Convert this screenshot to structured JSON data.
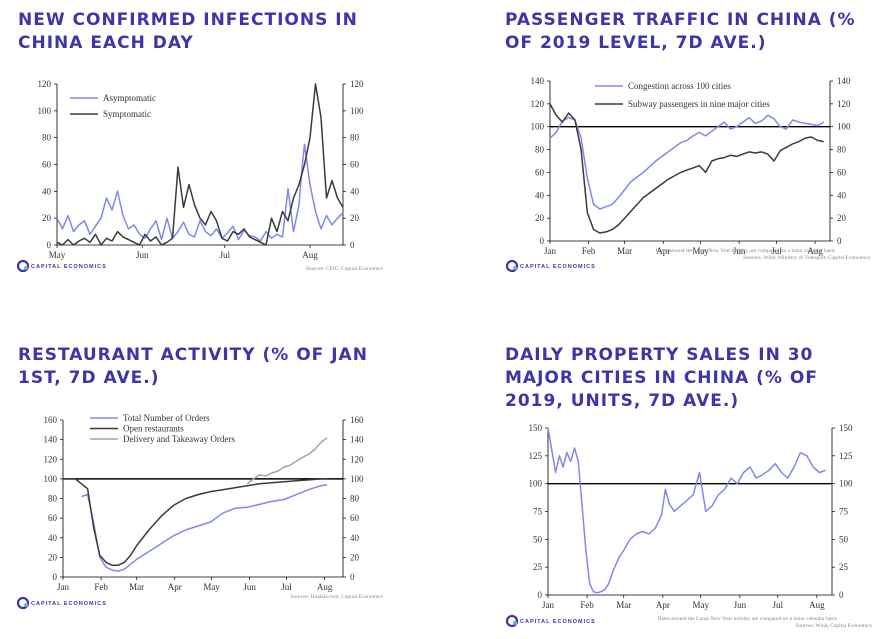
{
  "colors": {
    "title": "#3f34a8",
    "blue": "#8088ee",
    "dark": "#3a3a3a",
    "grey": "#a3a3a3",
    "axis": "#000000"
  },
  "logo": {
    "text": "CAPITAL ECONOMICS"
  },
  "chart_data": [
    {
      "id": "infections",
      "type": "line",
      "title": "NEW CONFIRMED INFECTIONS IN CHINA EACH DAY",
      "x_labels": [
        "May",
        "Jun",
        "Jul",
        "Aug"
      ],
      "x_label_pos": [
        0,
        31,
        61,
        92
      ],
      "xlim": [
        0,
        104
      ],
      "ylim": [
        0,
        120
      ],
      "yticks": [
        0,
        20,
        40,
        60,
        80,
        100,
        120
      ],
      "right_axis": true,
      "source": "Sources: CEIC, Capital Economics",
      "series": [
        {
          "name": "Asymptomatic",
          "color": "blue",
          "x": [
            0,
            2,
            4,
            6,
            8,
            10,
            12,
            14,
            16,
            18,
            20,
            22,
            24,
            26,
            28,
            30,
            32,
            34,
            36,
            38,
            40,
            42,
            44,
            46,
            48,
            50,
            52,
            54,
            56,
            58,
            60,
            62,
            64,
            66,
            68,
            70,
            72,
            74,
            76,
            78,
            80,
            82,
            84,
            86,
            88,
            89,
            90,
            92,
            94,
            96,
            98,
            100,
            102,
            104
          ],
          "y": [
            20,
            12,
            22,
            10,
            15,
            18,
            8,
            14,
            20,
            35,
            26,
            40,
            22,
            12,
            15,
            8,
            5,
            12,
            18,
            4,
            20,
            5,
            10,
            17,
            8,
            6,
            18,
            10,
            7,
            12,
            5,
            9,
            14,
            4,
            11,
            7,
            6,
            3,
            10,
            5,
            8,
            6,
            42,
            10,
            30,
            55,
            75,
            45,
            25,
            12,
            22,
            15,
            20,
            24
          ]
        },
        {
          "name": "Symptomatic",
          "color": "dark",
          "x": [
            0,
            2,
            4,
            6,
            8,
            10,
            12,
            14,
            16,
            18,
            20,
            22,
            24,
            26,
            28,
            30,
            32,
            34,
            36,
            38,
            40,
            42,
            44,
            46,
            48,
            50,
            52,
            54,
            56,
            58,
            60,
            62,
            64,
            66,
            68,
            70,
            72,
            74,
            76,
            78,
            80,
            82,
            84,
            86,
            88,
            90,
            92,
            94,
            96,
            98,
            100,
            102,
            104
          ],
          "y": [
            2,
            0,
            4,
            0,
            3,
            5,
            2,
            8,
            0,
            5,
            3,
            10,
            6,
            4,
            2,
            0,
            8,
            3,
            6,
            0,
            2,
            5,
            58,
            28,
            45,
            30,
            20,
            15,
            25,
            18,
            5,
            3,
            10,
            8,
            12,
            6,
            4,
            2,
            0,
            20,
            10,
            25,
            18,
            35,
            45,
            60,
            80,
            120,
            95,
            35,
            48,
            35,
            28
          ]
        }
      ]
    },
    {
      "id": "passenger",
      "type": "line",
      "title": "PASSENGER TRAFFIC IN CHINA (% OF 2019 LEVEL, 7D AVE.)",
      "x_labels": [
        "Jan",
        "Feb",
        "Mar",
        "Apr",
        "May",
        "Jun",
        "Jul",
        "Aug"
      ],
      "x_label_pos": [
        0,
        31,
        60,
        91,
        121,
        152,
        182,
        213
      ],
      "xlim": [
        0,
        225
      ],
      "ylim": [
        0,
        140
      ],
      "yticks": [
        0,
        20,
        40,
        60,
        80,
        100,
        120,
        140
      ],
      "reference": 100,
      "right_axis": true,
      "note": "Dates around the Lunar New Year holiday are compared on a lunar calendar basis",
      "source": "Sources: Wind, Ministry of Transport, Capital Economics",
      "series": [
        {
          "name": "Congestion across 100 cities",
          "color": "blue",
          "x": [
            0,
            5,
            10,
            15,
            20,
            25,
            30,
            35,
            40,
            45,
            50,
            55,
            60,
            65,
            70,
            75,
            80,
            85,
            90,
            95,
            100,
            105,
            110,
            115,
            120,
            125,
            130,
            135,
            140,
            145,
            150,
            155,
            160,
            165,
            170,
            175,
            180,
            185,
            190,
            195,
            200,
            205,
            210,
            215,
            220
          ],
          "y": [
            90,
            95,
            105,
            108,
            106,
            90,
            55,
            32,
            28,
            30,
            32,
            38,
            45,
            52,
            56,
            60,
            65,
            70,
            74,
            78,
            82,
            86,
            88,
            92,
            95,
            92,
            96,
            100,
            104,
            98,
            100,
            104,
            108,
            103,
            105,
            110,
            107,
            100,
            98,
            106,
            104,
            103,
            102,
            101,
            104
          ]
        },
        {
          "name": "Subway passengers in nine major cities",
          "color": "dark",
          "x": [
            0,
            5,
            10,
            15,
            20,
            25,
            30,
            35,
            40,
            45,
            50,
            55,
            60,
            65,
            70,
            75,
            80,
            85,
            90,
            95,
            100,
            105,
            110,
            115,
            120,
            125,
            130,
            135,
            140,
            145,
            150,
            155,
            160,
            165,
            170,
            175,
            180,
            185,
            190,
            195,
            200,
            205,
            210,
            215,
            220
          ],
          "y": [
            120,
            110,
            104,
            112,
            106,
            80,
            25,
            10,
            7,
            8,
            10,
            14,
            20,
            26,
            32,
            38,
            42,
            46,
            50,
            54,
            57,
            60,
            62,
            64,
            66,
            60,
            70,
            72,
            73,
            75,
            74,
            76,
            78,
            77,
            78,
            76,
            70,
            79,
            82,
            85,
            87,
            90,
            91,
            88,
            87
          ]
        }
      ]
    },
    {
      "id": "restaurant",
      "type": "line",
      "title": "RESTAURANT ACTIVITY (% OF JAN 1ST, 7D AVE.)",
      "x_labels": [
        "Jan",
        "Feb",
        "Mar",
        "Apr",
        "May",
        "Jun",
        "Jul",
        "Aug"
      ],
      "x_label_pos": [
        0,
        31,
        60,
        91,
        121,
        152,
        182,
        213
      ],
      "xlim": [
        0,
        228
      ],
      "ylim": [
        0,
        160
      ],
      "yticks": [
        0,
        20,
        40,
        60,
        80,
        100,
        120,
        140,
        160
      ],
      "reference": 100,
      "right_axis": true,
      "source": "Sources: Hualala.com, Capital Economics",
      "series": [
        {
          "name": "Total Number of Orders",
          "color": "blue",
          "x": [
            15,
            20,
            25,
            30,
            35,
            40,
            45,
            50,
            55,
            60,
            70,
            80,
            90,
            100,
            110,
            120,
            130,
            140,
            150,
            160,
            170,
            180,
            190,
            200,
            210,
            215
          ],
          "y": [
            82,
            84,
            55,
            20,
            10,
            7,
            6,
            8,
            13,
            18,
            26,
            34,
            42,
            48,
            52,
            56,
            65,
            70,
            71,
            74,
            77,
            79,
            84,
            89,
            93,
            94
          ]
        },
        {
          "name": "Open restaurants",
          "color": "dark",
          "x": [
            0,
            10,
            20,
            25,
            30,
            35,
            40,
            45,
            50,
            55,
            60,
            70,
            80,
            90,
            100,
            110,
            120,
            130,
            140,
            150,
            160,
            170,
            180,
            190,
            200,
            210,
            215
          ],
          "y": [
            100,
            100,
            90,
            50,
            22,
            15,
            12,
            12,
            15,
            22,
            32,
            48,
            62,
            73,
            80,
            84,
            87,
            89,
            91,
            93,
            95,
            96,
            97,
            98,
            99,
            100,
            100
          ]
        },
        {
          "name": "Delivery and Takeaway Orders",
          "color": "grey",
          "x": [
            150,
            155,
            160,
            165,
            170,
            175,
            180,
            185,
            190,
            195,
            200,
            205,
            210,
            215
          ],
          "y": [
            95,
            100,
            104,
            103,
            106,
            108,
            112,
            114,
            118,
            122,
            125,
            130,
            137,
            142
          ]
        }
      ]
    },
    {
      "id": "property",
      "type": "line",
      "title": "DAILY PROPERTY SALES IN 30 MAJOR CITIES IN CHINA (% OF 2019, UNITS, 7D AVE.)",
      "x_labels": [
        "Jan",
        "Feb",
        "Mar",
        "Apr",
        "May",
        "Jun",
        "Jul",
        "Aug"
      ],
      "x_label_pos": [
        0,
        31,
        60,
        91,
        121,
        152,
        182,
        213
      ],
      "xlim": [
        0,
        225
      ],
      "ylim": [
        0,
        150
      ],
      "yticks": [
        0,
        25,
        50,
        75,
        100,
        125,
        150
      ],
      "reference": 100,
      "right_axis": true,
      "note": "Dates around the Lunar New Year holiday are compared on a lunar calendar basis",
      "source": "Sources: Wind, Capital Economics",
      "series": [
        {
          "name": "Property sales",
          "color": "blue",
          "x": [
            0,
            3,
            6,
            9,
            12,
            15,
            18,
            21,
            24,
            27,
            30,
            33,
            36,
            39,
            42,
            45,
            48,
            51,
            54,
            57,
            60,
            65,
            70,
            75,
            80,
            85,
            90,
            93,
            96,
            100,
            105,
            110,
            115,
            120,
            125,
            130,
            135,
            140,
            145,
            150,
            155,
            160,
            165,
            170,
            175,
            180,
            185,
            190,
            195,
            200,
            205,
            210,
            215,
            220
          ],
          "y": [
            150,
            130,
            110,
            125,
            115,
            128,
            120,
            132,
            120,
            80,
            40,
            10,
            3,
            2,
            3,
            5,
            10,
            20,
            28,
            35,
            40,
            50,
            55,
            57,
            55,
            60,
            72,
            95,
            82,
            75,
            80,
            85,
            90,
            110,
            75,
            80,
            90,
            95,
            105,
            100,
            110,
            115,
            105,
            108,
            112,
            118,
            110,
            105,
            115,
            128,
            125,
            115,
            110,
            112
          ]
        }
      ]
    }
  ]
}
